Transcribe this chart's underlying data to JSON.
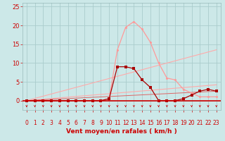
{
  "xlabel": "Vent moyen/en rafales ( km/h )",
  "xlim": [
    -0.5,
    23.5
  ],
  "ylim": [
    -2.5,
    26
  ],
  "xticks": [
    0,
    1,
    2,
    3,
    4,
    5,
    6,
    7,
    8,
    9,
    10,
    11,
    12,
    13,
    14,
    15,
    16,
    17,
    18,
    19,
    20,
    21,
    22,
    23
  ],
  "yticks": [
    0,
    5,
    10,
    15,
    20,
    25
  ],
  "bg_color": "#cce8e8",
  "grid_color": "#aacccc",
  "series_dark": {
    "x": [
      0,
      1,
      2,
      3,
      4,
      5,
      6,
      7,
      8,
      9,
      10,
      11,
      12,
      13,
      14,
      15,
      16,
      17,
      18,
      19,
      20,
      21,
      22,
      23
    ],
    "y": [
      0,
      0,
      0,
      0,
      0,
      0,
      0,
      0,
      0,
      0,
      0.5,
      9.0,
      9.0,
      8.5,
      5.5,
      3.5,
      0,
      0,
      0,
      0.5,
      1.5,
      2.5,
      3.0,
      2.5
    ],
    "color": "#aa0000",
    "linewidth": 0.9,
    "markersize": 2.2
  },
  "series_light": {
    "x": [
      0,
      1,
      2,
      3,
      4,
      5,
      6,
      7,
      8,
      9,
      10,
      11,
      12,
      13,
      14,
      15,
      16,
      17,
      18,
      19,
      20,
      21,
      22,
      23
    ],
    "y": [
      0,
      0,
      0,
      0,
      0,
      0,
      0,
      0,
      0,
      0,
      0.5,
      13.5,
      19.5,
      21.0,
      19.0,
      15.5,
      10.0,
      6.0,
      5.5,
      3.0,
      2.0,
      1.0,
      1.0,
      1.0
    ],
    "color": "#ff9999",
    "linewidth": 0.9,
    "markersize": 2.2
  },
  "line_upper": {
    "x": [
      0,
      23
    ],
    "y": [
      0,
      13.5
    ],
    "color": "#ffaaaa",
    "linewidth": 0.8
  },
  "line_lower": {
    "x": [
      0,
      23
    ],
    "y": [
      0,
      4.2
    ],
    "color": "#ffaaaa",
    "linewidth": 0.8
  },
  "line_mid": {
    "x": [
      0,
      23
    ],
    "y": [
      0,
      2.5
    ],
    "color": "#dd6666",
    "linewidth": 0.7
  },
  "hline_y": 0,
  "hline_color": "#cc0000",
  "hline_lw": 1.2,
  "arrow_color": "#cc0000",
  "xlabel_color": "#cc0000",
  "xlabel_fontsize": 6.5,
  "tick_color": "#cc0000",
  "tick_fontsize": 5.5,
  "ytick_fontsize": 6.0
}
